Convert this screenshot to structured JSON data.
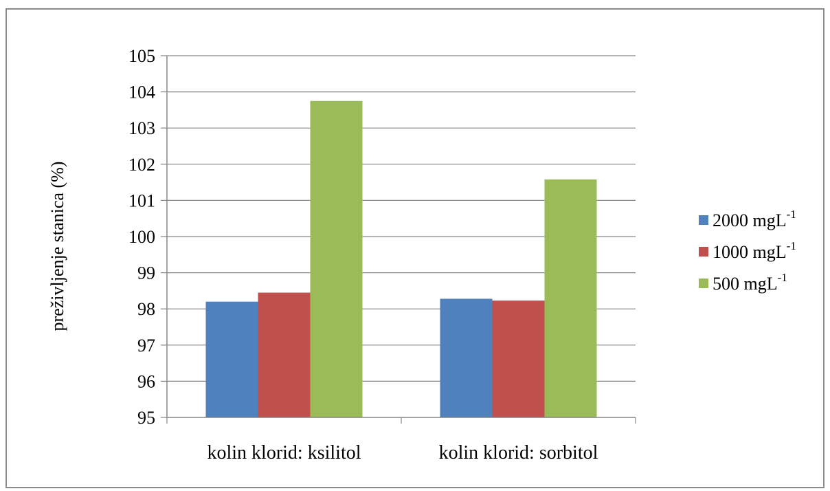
{
  "chart_data": {
    "type": "bar",
    "title": "",
    "xlabel": "",
    "ylabel": "preživljenje stanica (%)",
    "categories": [
      "kolin klorid: ksilitol",
      "kolin klorid: sorbitol"
    ],
    "series": [
      {
        "name": "2000 mgL",
        "sup": "-1",
        "color": "#4f81bd",
        "values": [
          98.2,
          98.28
        ]
      },
      {
        "name": "1000 mgL",
        "sup": "-1",
        "color": "#c0504d",
        "values": [
          98.45,
          98.23
        ]
      },
      {
        "name": "500 mgL",
        "sup": "-1",
        "color": "#9bbb59",
        "values": [
          103.75,
          101.58
        ]
      }
    ],
    "ylim": [
      95,
      105
    ],
    "yticks": [
      "95",
      "96",
      "97",
      "98",
      "99",
      "100",
      "101",
      "102",
      "103",
      "104",
      "105"
    ],
    "grid": true,
    "legend": "right"
  }
}
